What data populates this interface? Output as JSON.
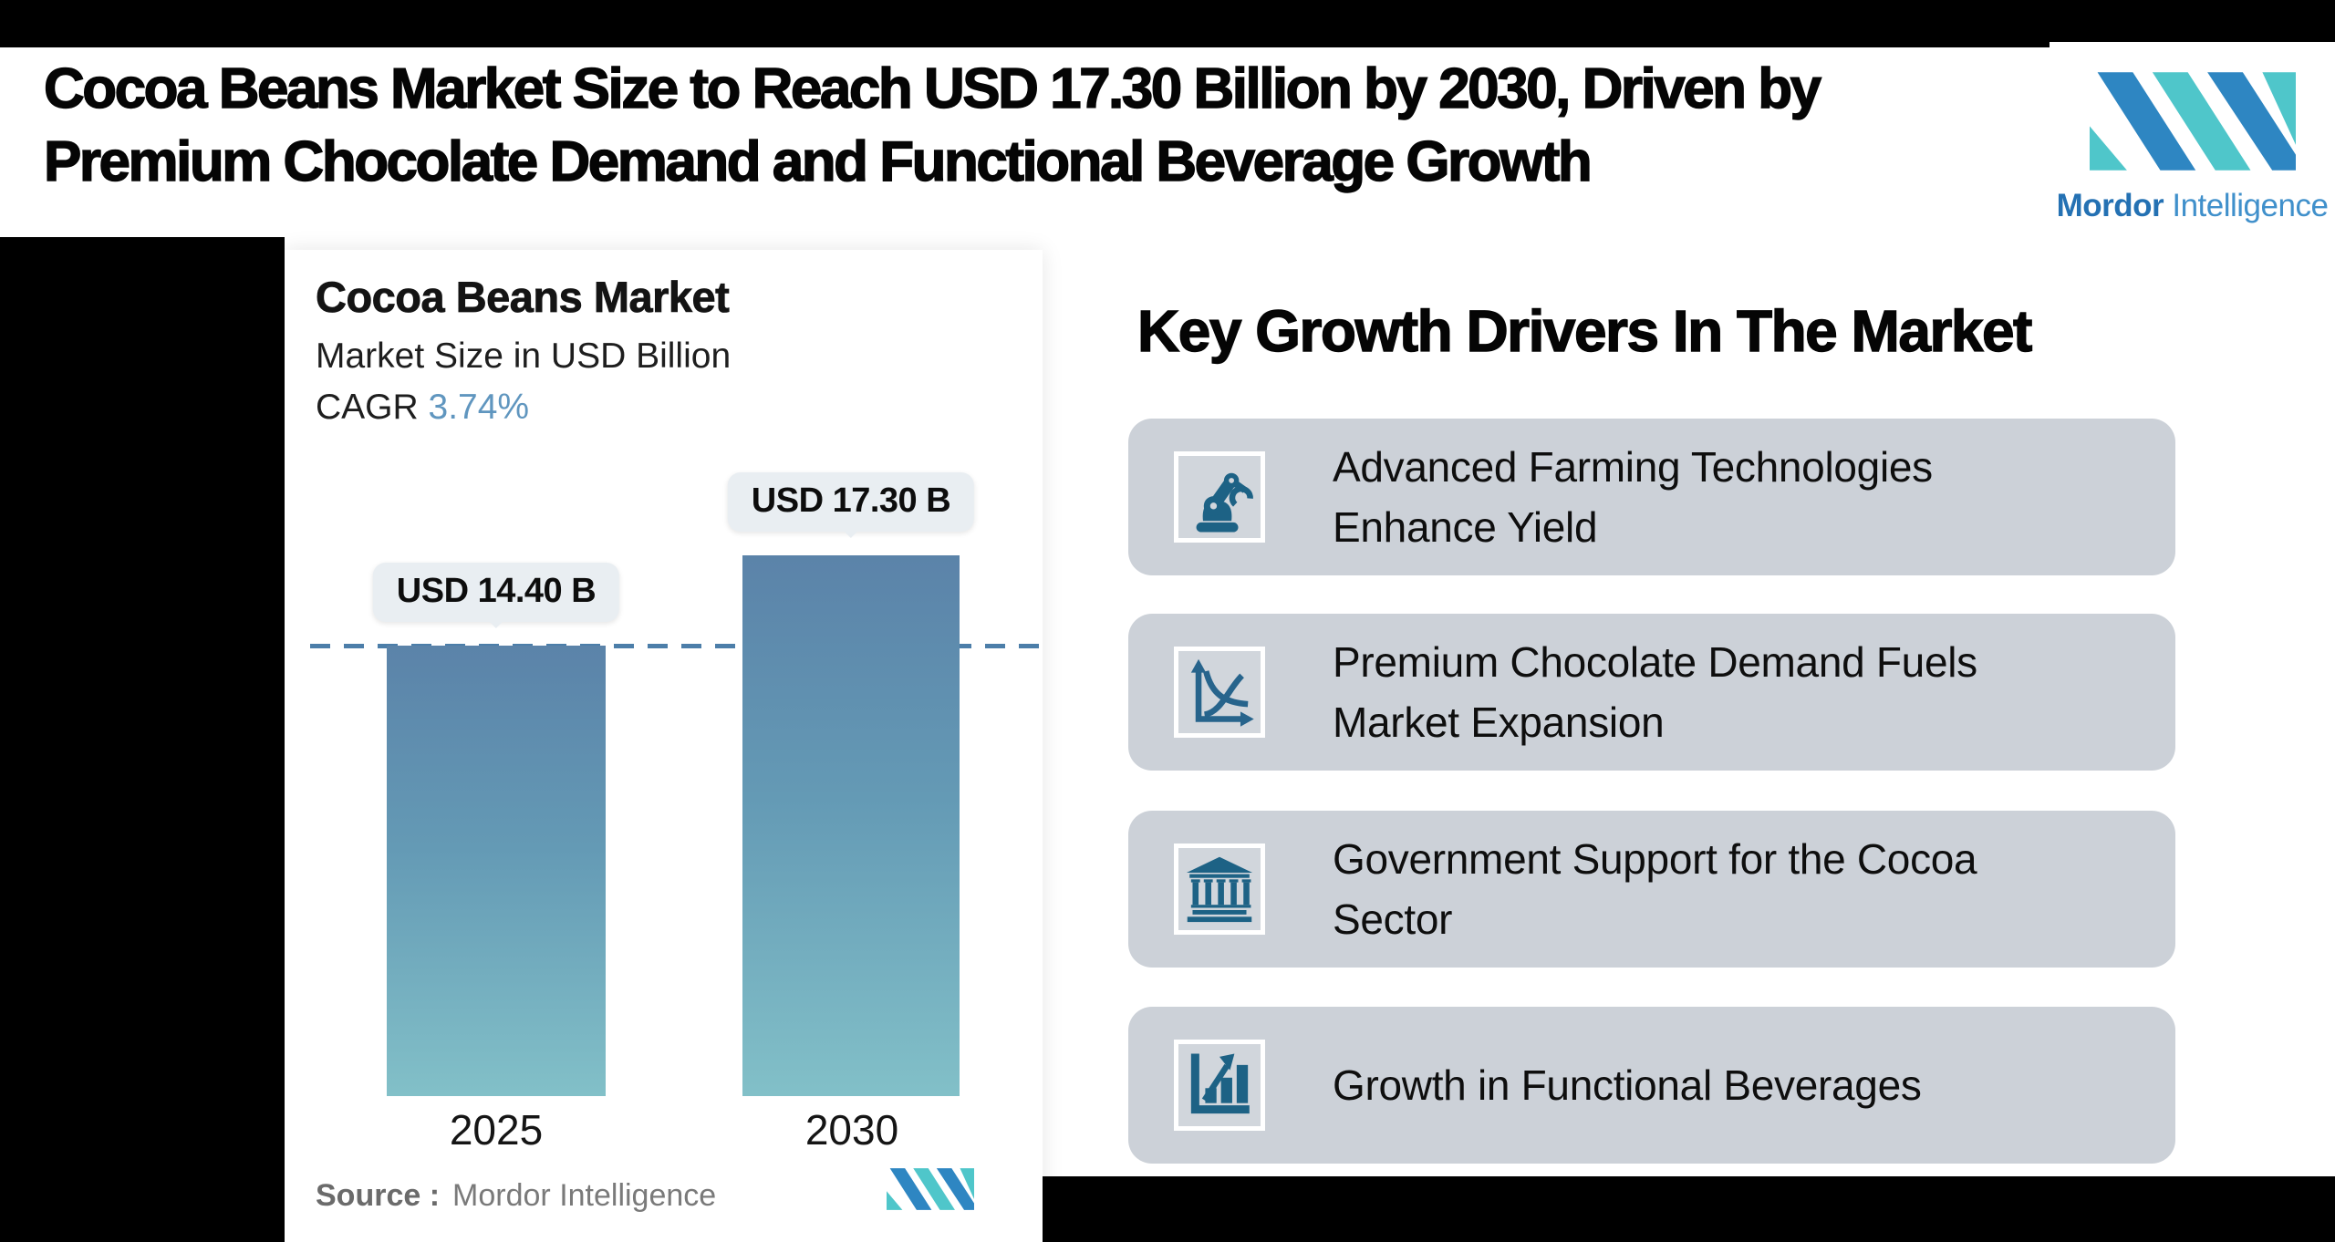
{
  "headline": {
    "line1": "Cocoa Beans Market Size to Reach USD 17.30 Billion by 2030, Driven by",
    "line2": "Premium Chocolate Demand and Functional Beverage Growth"
  },
  "brand": {
    "name_bold": "Mordor",
    "name_regular": "Intelligence",
    "colors": {
      "blue": "#2e86c2",
      "teal": "#4fc6ca",
      "word_bold": "#2471b3",
      "word_regular": "#4090cb"
    }
  },
  "chart_data": {
    "type": "bar",
    "title": "Cocoa Beans Market",
    "subtitle": "Market Size in USD Billion",
    "cagr_label": "CAGR",
    "cagr_value": "3.74%",
    "categories": [
      "2025",
      "2030"
    ],
    "values": [
      14.4,
      17.3
    ],
    "bar_labels": [
      "USD 14.40 B",
      "USD 17.30 B"
    ],
    "dashed_reference_value": 14.4,
    "ylim": [
      0,
      27
    ],
    "grid": "off",
    "bar_gradient": [
      "#5b83a9",
      "#82c0c8"
    ],
    "dash_color": "#4c7ea9",
    "source_label": "Source :",
    "source_value": "Mordor Intelligence"
  },
  "drivers": {
    "heading": "Key Growth Drivers In The Market",
    "card_bg": "#ccd1d8",
    "icon_color": "#1d6285",
    "items": [
      {
        "icon": "robot-arm-icon",
        "line1": "Advanced Farming Technologies",
        "line2": "Enhance Yield"
      },
      {
        "icon": "supply-demand-chart-icon",
        "line1": "Premium Chocolate Demand Fuels",
        "line2": "Market Expansion"
      },
      {
        "icon": "government-building-icon",
        "line1": "Government Support for the Cocoa",
        "line2": "Sector"
      },
      {
        "icon": "growth-bar-chart-icon",
        "line1": "Growth in Functional Beverages",
        "line2": ""
      }
    ]
  },
  "colors": {
    "page_background": "#000000",
    "content_background": "#ffffff",
    "headline_text": "#050505",
    "cagr_accent": "#6096bf",
    "badge_background": "#e9eef2",
    "source_text": "#6b6b6b"
  }
}
